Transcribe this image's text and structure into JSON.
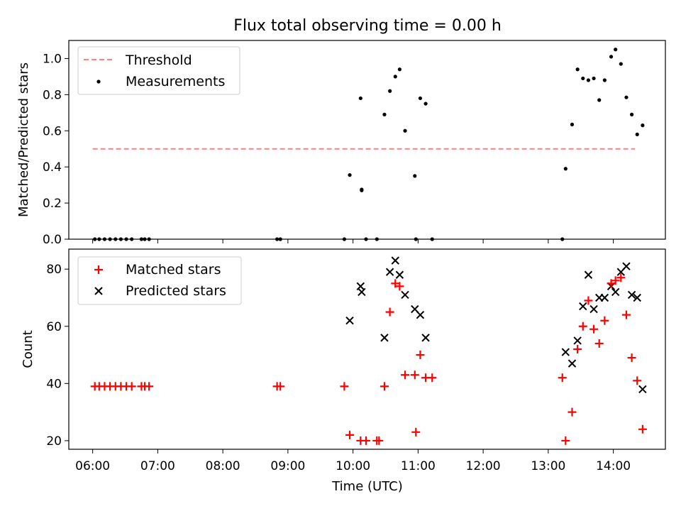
{
  "title": "Flux total observing time = 0.00 h",
  "colors": {
    "threshold": "#ff8080",
    "measurements": "#000000",
    "matched": "#ff0000",
    "predicted": "#000000"
  },
  "chart_data": [
    {
      "type": "scatter",
      "ylabel": "Matched/Predicted stars",
      "ylim": [
        0,
        1.1
      ],
      "xlim": [
        "05:38",
        "14:48"
      ],
      "yticks": [
        "0.0",
        "0.2",
        "0.4",
        "0.6",
        "0.8",
        "1.0"
      ],
      "grid": false,
      "legend": {
        "placement": "upper-left",
        "entries": [
          "Threshold",
          "Measurements"
        ]
      },
      "threshold": {
        "name": "Threshold",
        "value": 0.5,
        "x_start": "06:00",
        "x_end": "14:20",
        "style": "dashed"
      },
      "series": [
        {
          "name": "Measurements",
          "marker": "dot",
          "points": [
            [
              "06:02",
              0
            ],
            [
              "06:06",
              0
            ],
            [
              "06:11",
              0
            ],
            [
              "06:16",
              0
            ],
            [
              "06:21",
              0
            ],
            [
              "06:26",
              0
            ],
            [
              "06:31",
              0
            ],
            [
              "06:36",
              0
            ],
            [
              "06:45",
              0
            ],
            [
              "06:48",
              0
            ],
            [
              "06:52",
              0
            ],
            [
              "08:50",
              0
            ],
            [
              "08:53",
              0
            ],
            [
              "09:52",
              0
            ],
            [
              "09:57",
              0.355
            ],
            [
              "10:07",
              0.78
            ],
            [
              "10:08",
              0.27
            ],
            [
              "10:08",
              0.275
            ],
            [
              "10:12",
              0
            ],
            [
              "10:22",
              0
            ],
            [
              "10:29",
              0.69
            ],
            [
              "10:34",
              0.82
            ],
            [
              "10:39",
              0.9
            ],
            [
              "10:43",
              0.94
            ],
            [
              "10:48",
              0.6
            ],
            [
              "10:57",
              0.35
            ],
            [
              "10:58",
              0
            ],
            [
              "11:02",
              0.78
            ],
            [
              "11:07",
              0.75
            ],
            [
              "11:13",
              0
            ],
            [
              "13:13",
              0
            ],
            [
              "13:16",
              0.39
            ],
            [
              "13:22",
              0.635
            ],
            [
              "13:27",
              0.94
            ],
            [
              "13:32",
              0.89
            ],
            [
              "13:37",
              0.88
            ],
            [
              "13:42",
              0.89
            ],
            [
              "13:47",
              0.77
            ],
            [
              "13:52",
              0.88
            ],
            [
              "13:58",
              1.01
            ],
            [
              "14:02",
              1.05
            ],
            [
              "14:07",
              0.97
            ],
            [
              "14:12",
              0.785
            ],
            [
              "14:17",
              0.69
            ],
            [
              "14:22",
              0.58
            ],
            [
              "14:27",
              0.63
            ]
          ]
        }
      ]
    },
    {
      "type": "scatter",
      "ylabel": "Count",
      "xlabel": "Time (UTC)",
      "ylim": [
        17,
        87
      ],
      "xlim": [
        "05:38",
        "14:48"
      ],
      "yticks": [
        "20",
        "40",
        "60",
        "80"
      ],
      "xticks": [
        "06:00",
        "07:00",
        "08:00",
        "09:00",
        "10:00",
        "11:00",
        "12:00",
        "13:00",
        "14:00"
      ],
      "grid": false,
      "legend": {
        "placement": "upper-left",
        "entries": [
          "Matched stars",
          "Predicted stars"
        ]
      },
      "series": [
        {
          "name": "Matched stars",
          "marker": "plus",
          "points": [
            [
              "06:02",
              39
            ],
            [
              "06:06",
              39
            ],
            [
              "06:11",
              39
            ],
            [
              "06:16",
              39
            ],
            [
              "06:21",
              39
            ],
            [
              "06:26",
              39
            ],
            [
              "06:31",
              39
            ],
            [
              "06:36",
              39
            ],
            [
              "06:45",
              39
            ],
            [
              "06:48",
              39
            ],
            [
              "06:52",
              39
            ],
            [
              "08:50",
              39
            ],
            [
              "08:53",
              39
            ],
            [
              "09:52",
              39
            ],
            [
              "09:57",
              22
            ],
            [
              "10:07",
              20
            ],
            [
              "10:12",
              20
            ],
            [
              "10:22",
              20
            ],
            [
              "10:24",
              20
            ],
            [
              "10:29",
              39
            ],
            [
              "10:34",
              65
            ],
            [
              "10:39",
              75
            ],
            [
              "10:43",
              74
            ],
            [
              "10:48",
              43
            ],
            [
              "10:57",
              43
            ],
            [
              "10:58",
              23
            ],
            [
              "11:02",
              50
            ],
            [
              "11:07",
              42
            ],
            [
              "11:13",
              42
            ],
            [
              "13:13",
              42
            ],
            [
              "13:16",
              20
            ],
            [
              "13:22",
              30
            ],
            [
              "13:27",
              52
            ],
            [
              "13:32",
              60
            ],
            [
              "13:37",
              69
            ],
            [
              "13:42",
              59
            ],
            [
              "13:47",
              54
            ],
            [
              "13:52",
              62
            ],
            [
              "13:58",
              75
            ],
            [
              "14:02",
              76
            ],
            [
              "14:07",
              77
            ],
            [
              "14:12",
              64
            ],
            [
              "14:17",
              49
            ],
            [
              "14:22",
              41
            ],
            [
              "14:27",
              24
            ]
          ]
        },
        {
          "name": "Predicted stars",
          "marker": "x",
          "points": [
            [
              "09:57",
              62
            ],
            [
              "10:07",
              74
            ],
            [
              "10:08",
              72
            ],
            [
              "10:29",
              56
            ],
            [
              "10:34",
              79
            ],
            [
              "10:39",
              83
            ],
            [
              "10:43",
              78
            ],
            [
              "10:48",
              71
            ],
            [
              "10:57",
              66
            ],
            [
              "11:02",
              64
            ],
            [
              "11:07",
              56
            ],
            [
              "13:16",
              51
            ],
            [
              "13:22",
              47
            ],
            [
              "13:27",
              55
            ],
            [
              "13:32",
              67
            ],
            [
              "13:37",
              78
            ],
            [
              "13:42",
              66
            ],
            [
              "13:47",
              70
            ],
            [
              "13:52",
              70
            ],
            [
              "13:58",
              74
            ],
            [
              "14:02",
              72
            ],
            [
              "14:07",
              79
            ],
            [
              "14:12",
              81
            ],
            [
              "14:17",
              71
            ],
            [
              "14:22",
              70
            ],
            [
              "14:27",
              38
            ]
          ]
        }
      ]
    }
  ]
}
